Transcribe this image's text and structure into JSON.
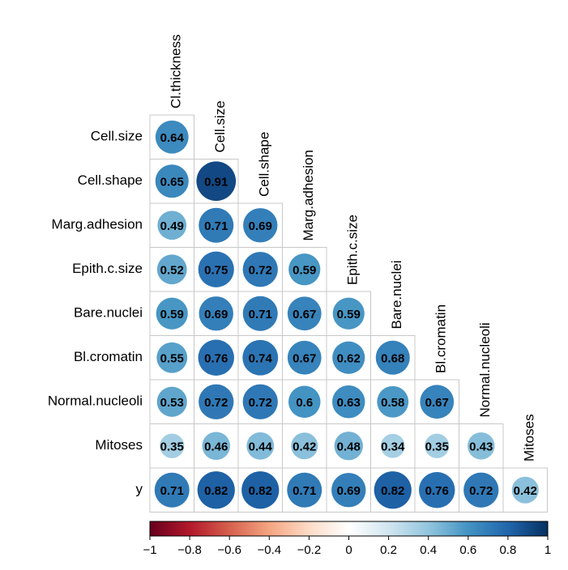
{
  "chart_data": {
    "type": "heatmap",
    "style": "lower-triangle correlation matrix with sized, colored circles",
    "variables": [
      "Cl.thickness",
      "Cell.size",
      "Cell.shape",
      "Marg.adhesion",
      "Epith.c.size",
      "Bare.nuclei",
      "Bl.cromatin",
      "Normal.nucleoli",
      "Mitoses",
      "y"
    ],
    "row_labels": [
      "Cell.size",
      "Cell.shape",
      "Marg.adhesion",
      "Epith.c.size",
      "Bare.nuclei",
      "Bl.cromatin",
      "Normal.nucleoli",
      "Mitoses",
      "y"
    ],
    "col_labels": [
      "Cl.thickness",
      "Cell.size",
      "Cell.shape",
      "Marg.adhesion",
      "Epith.c.size",
      "Bare.nuclei",
      "Bl.cromatin",
      "Normal.nucleoli",
      "Mitoses"
    ],
    "values": [
      [
        0.64
      ],
      [
        0.65,
        0.91
      ],
      [
        0.49,
        0.71,
        0.69
      ],
      [
        0.52,
        0.75,
        0.72,
        0.59
      ],
      [
        0.59,
        0.69,
        0.71,
        0.67,
        0.59
      ],
      [
        0.55,
        0.76,
        0.74,
        0.67,
        0.62,
        0.68
      ],
      [
        0.53,
        0.72,
        0.72,
        0.6,
        0.63,
        0.58,
        0.67
      ],
      [
        0.35,
        0.46,
        0.44,
        0.42,
        0.48,
        0.34,
        0.35,
        0.43
      ],
      [
        0.71,
        0.82,
        0.82,
        0.71,
        0.69,
        0.82,
        0.76,
        0.72,
        0.42
      ]
    ],
    "value_labels": [
      [
        "0.64"
      ],
      [
        "0.65",
        "0.91"
      ],
      [
        "0.49",
        "0.71",
        "0.69"
      ],
      [
        "0.52",
        "0.75",
        "0.72",
        "0.59"
      ],
      [
        "0.59",
        "0.69",
        "0.71",
        "0.67",
        "0.59"
      ],
      [
        "0.55",
        "0.76",
        "0.74",
        "0.67",
        "0.62",
        "0.68"
      ],
      [
        "0.53",
        "0.72",
        "0.72",
        "0.6",
        "0.63",
        "0.58",
        "0.67"
      ],
      [
        "0.35",
        "0.46",
        "0.44",
        "0.42",
        "0.48",
        "0.34",
        "0.35",
        "0.43"
      ],
      [
        "0.71",
        "0.82",
        "0.82",
        "0.71",
        "0.69",
        "0.82",
        "0.76",
        "0.72",
        "0.42"
      ]
    ],
    "colorbar": {
      "range": [
        -1,
        1
      ],
      "ticks": [
        -1,
        -0.8,
        -0.6,
        -0.4,
        -0.2,
        0,
        0.2,
        0.4,
        0.6,
        0.8,
        1
      ],
      "tick_labels": [
        "−1",
        "−0.8",
        "−0.6",
        "−0.4",
        "−0.2",
        "0",
        "0.2",
        "0.4",
        "0.6",
        "0.8",
        "1"
      ],
      "orientation": "horizontal",
      "position": "bottom"
    },
    "colormap_stops": [
      "#67001f",
      "#b2182b",
      "#d6604d",
      "#f4a582",
      "#fddbc7",
      "#ffffff",
      "#d1e5f0",
      "#92c5de",
      "#4393c3",
      "#2166ac",
      "#053061"
    ],
    "grid": true,
    "legend": "colorbar-bottom"
  }
}
